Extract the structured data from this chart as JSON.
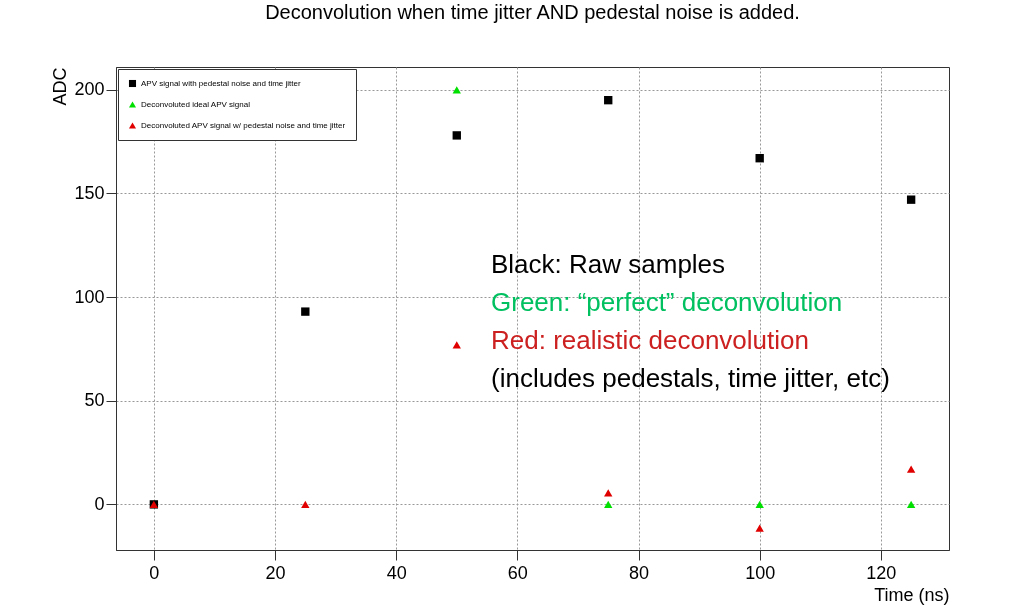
{
  "chart_data": {
    "type": "scatter",
    "title": "Deconvolution when time jitter AND pedestal noise is added.",
    "xlabel": "Time (ns)",
    "ylabel": "ADC",
    "x": [
      0,
      25,
      50,
      75,
      100,
      125
    ],
    "series": [
      {
        "name": "APV signal with pedestal noise and time jitter",
        "color": "#000000",
        "marker": "square",
        "values": [
          0,
          93,
          178,
          195,
          167,
          147
        ]
      },
      {
        "name": "Deconvoluted ideal APV signal",
        "color": "#00e000",
        "marker": "triangle",
        "values": [
          null,
          null,
          200,
          0,
          0,
          0
        ]
      },
      {
        "name": "Deconvoluted APV signal w/ pedestal noise and time jitter",
        "color": "#e00000",
        "marker": "triangle",
        "values": [
          0,
          0,
          77,
          5.5,
          -11.5,
          17
        ]
      }
    ],
    "annotations": [
      "Black: Raw samples",
      "Green: “perfect” deconvolution",
      "Red: realistic deconvolution",
      "(includes pedestals, time jitter, etc)"
    ],
    "xlim": [
      -6.25,
      131.25
    ],
    "xticks": [
      0,
      20,
      40,
      60,
      80,
      100,
      120
    ],
    "ylim": [
      -22,
      211
    ],
    "yticks": [
      0,
      50,
      100,
      150,
      200
    ],
    "grid": true,
    "legend": "top left"
  }
}
